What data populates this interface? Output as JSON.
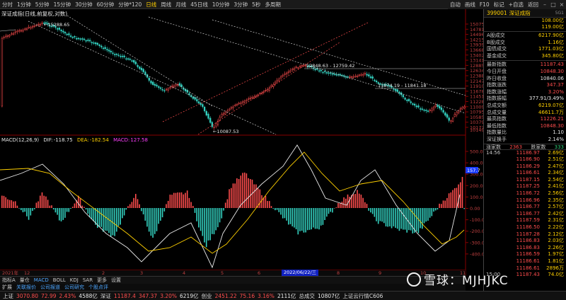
{
  "toolbar": {
    "items": [
      "分时",
      "1分钟",
      "5分钟",
      "15分钟",
      "30分钟",
      "60分钟",
      "分钟*120",
      "日线",
      "周线",
      "月线",
      "45日线",
      "10分钟",
      "3分钟",
      "5秒",
      "多周期"
    ],
    "active_index": 7,
    "right_items": [
      "自动",
      "画线",
      "F10",
      "标记",
      "+自选",
      "返回"
    ]
  },
  "chart": {
    "title": "深证成指(日线,前复权,对数)",
    "annotations": {
      "high_label": "15288.65",
      "low_label": "10087.53",
      "range1": "12848.63 - 12759.42",
      "range2": "11874.19 - 11841.18"
    },
    "price_ticks": [
      "15075",
      "14781",
      "14496",
      "14215",
      "13939",
      "13668",
      "13402",
      "13141",
      "12885",
      "12634",
      "12388",
      "12147",
      "11910",
      "11678",
      "11451",
      "11228",
      "11009",
      "10795",
      "10585",
      "10379",
      "10177"
    ],
    "price_tick_last": "10149",
    "current_price_tag": "157.7"
  },
  "macd": {
    "name": "MACD(12,26,9)",
    "dif_label": "DIF:",
    "dif": "-118.75",
    "dea_label": "DEA:",
    "dea": "-182.54",
    "macd_label": "MACD:",
    "macd": "127.58",
    "ticks": [
      "500.0",
      "400.0",
      "300.0",
      "200.0",
      "100.0",
      "0.00",
      "-100.0",
      "-200.0",
      "-300.0",
      "-400.0"
    ]
  },
  "date_axis": {
    "ticks": [
      "2021年",
      "12",
      "2",
      "3",
      "4",
      "5",
      "6",
      "7",
      "8",
      "9",
      "10",
      "11"
    ],
    "cursor": "2022/06/22/三"
  },
  "bottom_tabs": {
    "items": [
      "指标A",
      "量仓",
      "MACD",
      "BOLL",
      "KDJ",
      "SAR",
      "更多",
      "设置"
    ],
    "active_index": 2,
    "second_row": [
      "扩展",
      "关联报价",
      "公司报道",
      "公司研究",
      "个股点评"
    ]
  },
  "statusbar": {
    "items": [
      {
        "name": "上证",
        "price": "3070.80",
        "change": "72.99",
        "pct": "2.43%",
        "vol": "4588亿"
      },
      {
        "name": "深证",
        "price": "11187.4",
        "change": "347.37",
        "pct": "3.20%",
        "vol": "6219亿"
      },
      {
        "name": "创业",
        "price": "2451.22",
        "change": "75.16",
        "pct": "3.16%",
        "vol": "2111亿"
      }
    ],
    "total_label": "总成交",
    "total": "10807亿",
    "extra": "上证云行情C606"
  },
  "quote": {
    "code": "399001",
    "name": "深证成指",
    "sup": "5G1",
    "top_values": [
      "108.00",
      "119.00"
    ],
    "top_values_b": [
      "亿",
      "亿"
    ],
    "rows": [
      {
        "label": "A股成交",
        "value": "6217.90亿",
        "color": "#ffd000"
      },
      {
        "label": "B股成交",
        "value": "1.16亿",
        "color": "#ffd000"
      },
      {
        "label": "国债成交",
        "value": "1771.03亿",
        "color": "#ffd000"
      },
      {
        "label": "基金成交",
        "value": "345.80亿",
        "color": "#ffd000"
      },
      {
        "label": "最新指数",
        "value": "11187.43",
        "color": "#ff4d4d"
      },
      {
        "label": "今日开盘",
        "value": "10848.30",
        "color": "#ff4d4d"
      },
      {
        "label": "昨日收盘",
        "value": "10840.06",
        "color": "#e8e8e8"
      },
      {
        "label": "指数涨跌",
        "value": "347.37",
        "color": "#ff4d4d"
      },
      {
        "label": "指数涨幅",
        "value": "3.20%",
        "color": "#ff4d4d"
      },
      {
        "label": "指数振幅",
        "value": "377.91/3.49%",
        "color": "#e8e8e8"
      },
      {
        "label": "总成交额",
        "value": "6219.07亿",
        "color": "#ffd000"
      },
      {
        "label": "总成交量",
        "value": "46611.7万",
        "color": "#ffd000"
      },
      {
        "label": "最高指数",
        "value": "11226.21",
        "color": "#ff4d4d"
      },
      {
        "label": "最低指数",
        "value": "10848.30",
        "color": "#ff4d4d"
      },
      {
        "label": "指数量比",
        "value": "1.10",
        "color": "#e8e8e8"
      },
      {
        "label": "深证换手",
        "value": "2.14%",
        "color": "#e8e8e8"
      }
    ],
    "tick_head": {
      "left": "涨家数",
      "mid": "2363",
      "mid_label": "跌家数",
      "right": "333"
    },
    "ticks": [
      {
        "t": "14:56",
        "p": "11186.97",
        "v": "2.69亿"
      },
      {
        "t": "",
        "p": "11186.90",
        "v": "2.51亿"
      },
      {
        "t": "",
        "p": "11186.29",
        "v": "2.47亿"
      },
      {
        "t": "",
        "p": "11186.61",
        "v": "2.34亿"
      },
      {
        "t": "",
        "p": "11187.15",
        "v": "2.54亿"
      },
      {
        "t": "",
        "p": "11187.25",
        "v": "2.41亿"
      },
      {
        "t": "",
        "p": "11186.72",
        "v": "2.56亿"
      },
      {
        "t": "",
        "p": "11186.96",
        "v": "2.35亿"
      },
      {
        "t": "",
        "p": "11186.77",
        "v": "2.57亿"
      },
      {
        "t": "",
        "p": "11186.77",
        "v": "2.42亿"
      },
      {
        "t": "",
        "p": "11187.59",
        "v": "2.31亿"
      },
      {
        "t": "",
        "p": "11186.50",
        "v": "2.22亿"
      },
      {
        "t": "",
        "p": "11187.28",
        "v": "2.12亿"
      },
      {
        "t": "",
        "p": "11186.83",
        "v": "2.03亿"
      },
      {
        "t": "",
        "p": "11186.83",
        "v": "2.26亿"
      },
      {
        "t": "",
        "p": "11186.59",
        "v": "1.97亿"
      },
      {
        "t": "",
        "p": "11186.61",
        "v": "1.81亿"
      },
      {
        "t": "",
        "p": "11186.61",
        "v": "2896万"
      },
      {
        "t": "15:00",
        "p": "11187.43",
        "v": "74.0亿"
      }
    ]
  },
  "watermark": "雪球：MJHJKC",
  "colors": {
    "up": "#ff4d4d",
    "down": "#33d1c0",
    "dif": "#e8e8e8",
    "dea": "#ffd000",
    "channel_red": "#cc2020",
    "channel_white": "#aaaaaa"
  }
}
